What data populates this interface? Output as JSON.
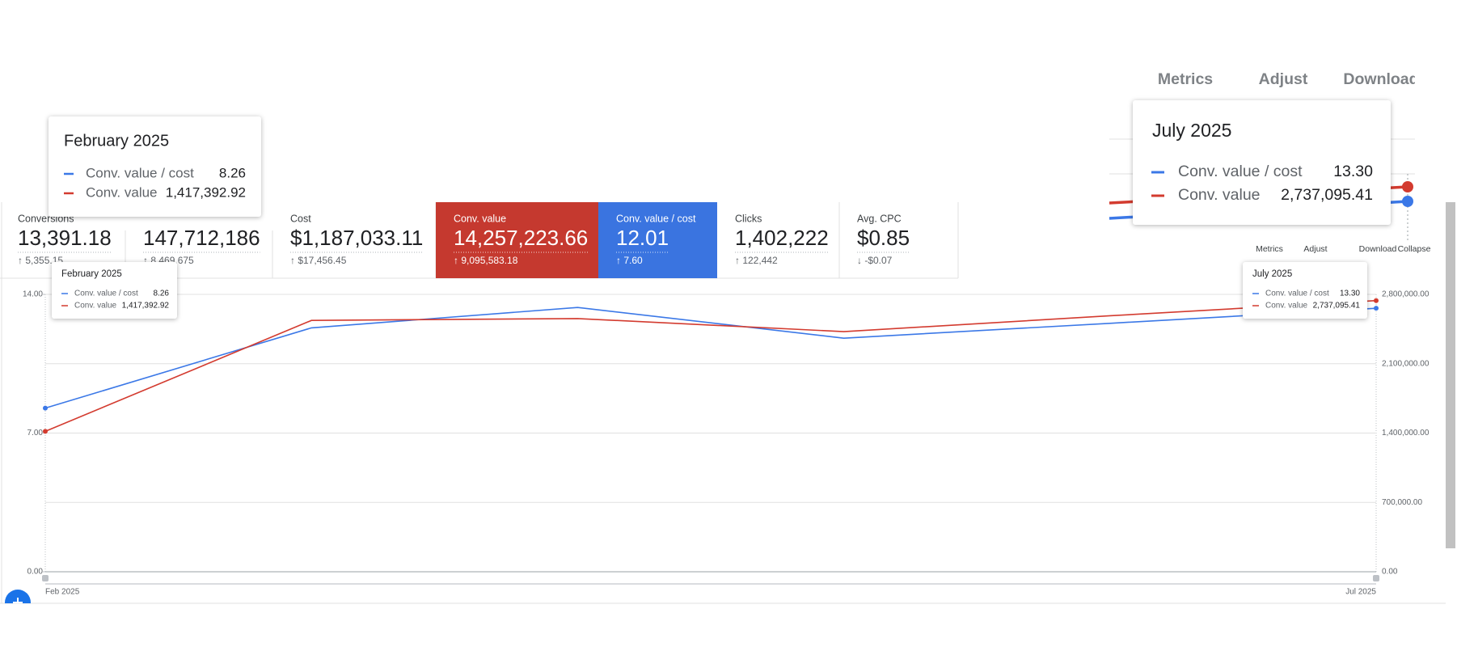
{
  "metrics": [
    {
      "label": "Conversions",
      "value": "13,391.18",
      "change": "↑ 5,355.15"
    },
    {
      "value": "147,712,186",
      "change": "↑ 8,469,675"
    },
    {
      "label": "Cost",
      "value": "$1,187,033.11",
      "change": "↑ $17,456.45"
    },
    {
      "label": "Conv. value",
      "value": "14,257,223.66",
      "change": "↑ 9,095,583.18",
      "color": "#c5392f"
    },
    {
      "label": "Conv. value / cost",
      "value": "12.01",
      "change": "↑ 7.60",
      "color": "#3a74e0"
    },
    {
      "label": "Clicks",
      "value": "1,402,222",
      "change": "↑ 122,442"
    },
    {
      "label": "Avg. CPC",
      "value": "$0.85",
      "change": "↓ -$0.07"
    }
  ],
  "toolbar": [
    "Metrics",
    "Adjust",
    "Download",
    "Collapse"
  ],
  "chart_data": {
    "type": "line",
    "categories": [
      "Feb 2025",
      null,
      null,
      null,
      null,
      "Jul 2025"
    ],
    "series": [
      {
        "name": "Conv. value / cost",
        "color": "#3b78e7",
        "values": [
          8.26,
          12.31,
          13.34,
          11.79,
          12.54,
          13.3
        ],
        "value_labels": [
          "8.26",
          null,
          null,
          null,
          null,
          "13.30"
        ]
      },
      {
        "name": "Conv. value",
        "color": "#d33b2f",
        "axis": "y2",
        "values": [
          1417392.92,
          2537000,
          2556000,
          2424000,
          2584000,
          2737095.41
        ],
        "value_labels": [
          "1,417,392.92",
          null,
          null,
          null,
          null,
          "2,737,095.41"
        ]
      }
    ],
    "ylim": [
      0,
      14
    ],
    "yticks": [
      {
        "value": 0,
        "label": "0.00"
      },
      {
        "value": 7,
        "label": "7.00"
      },
      {
        "value": 14,
        "label": "14.00"
      }
    ],
    "y2lim": [
      0,
      2800000
    ],
    "y2ticks": [
      {
        "value": 0,
        "label": "0.00"
      },
      {
        "value": 700000,
        "label": "700,000.00"
      },
      {
        "value": 1400000,
        "label": "1,400,000.00"
      },
      {
        "value": 2100000,
        "label": "2,100,000.00"
      },
      {
        "value": 2800000,
        "label": "2,800,000.00"
      }
    ],
    "grid": true,
    "tooltip_titles": [
      "February 2025",
      "July 2025"
    ]
  }
}
